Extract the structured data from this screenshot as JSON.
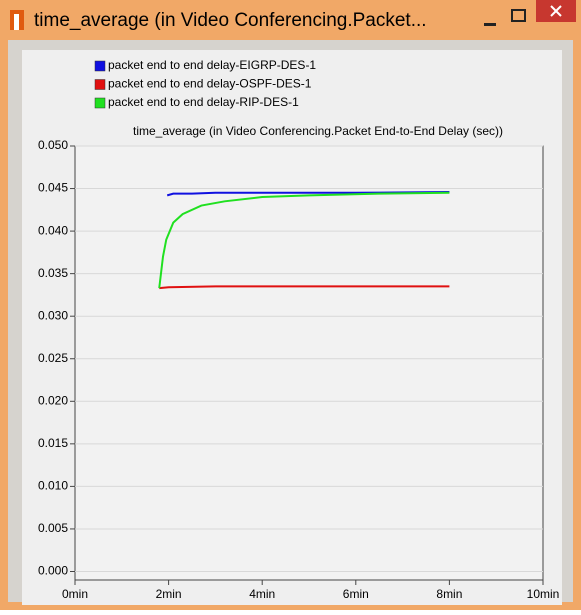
{
  "window": {
    "title": "time_average (in Video Conferencing.Packet..."
  },
  "chart_data": {
    "type": "line",
    "title": "time_average (in Video Conferencing.Packet End-to-End Delay (sec))",
    "xlim": [
      0,
      10
    ],
    "xticks": [
      {
        "value": 0,
        "label": "0min"
      },
      {
        "value": 2,
        "label": "2min"
      },
      {
        "value": 4,
        "label": "4min"
      },
      {
        "value": 6,
        "label": "6min"
      },
      {
        "value": 8,
        "label": "8min"
      },
      {
        "value": 10,
        "label": "10min"
      }
    ],
    "ylim": [
      -0.001,
      0.05
    ],
    "yticks": [
      {
        "value": 0,
        "label": "0.000"
      },
      {
        "value": 0.005,
        "label": "0.005"
      },
      {
        "value": 0.01,
        "label": "0.010"
      },
      {
        "value": 0.015,
        "label": "0.015"
      },
      {
        "value": 0.02,
        "label": "0.020"
      },
      {
        "value": 0.025,
        "label": "0.025"
      },
      {
        "value": 0.03,
        "label": "0.030"
      },
      {
        "value": 0.035,
        "label": "0.035"
      },
      {
        "value": 0.04,
        "label": "0.040"
      },
      {
        "value": 0.045,
        "label": "0.045"
      },
      {
        "value": 0.05,
        "label": "0.050"
      }
    ],
    "grid": true,
    "series": [
      {
        "name": "packet end to end delay-EIGRP-DES-1",
        "color": "#1010e0",
        "x": [
          1.97,
          2.1,
          2.5,
          3,
          4,
          6,
          8
        ],
        "values": [
          0.0442,
          0.0444,
          0.0444,
          0.0445,
          0.0445,
          0.0445,
          0.0446
        ]
      },
      {
        "name": "packet end to end delay-OSPF-DES-1",
        "color": "#e01010",
        "x": [
          1.8,
          2,
          3,
          4,
          6,
          8
        ],
        "values": [
          0.0333,
          0.0334,
          0.0335,
          0.0335,
          0.0335,
          0.0335
        ]
      },
      {
        "name": "packet end to end delay-RIP-DES-1",
        "color": "#20e020",
        "x": [
          1.8,
          1.88,
          1.95,
          2.1,
          2.3,
          2.7,
          3.2,
          4,
          5,
          6.5,
          8
        ],
        "values": [
          0.0333,
          0.037,
          0.039,
          0.041,
          0.042,
          0.043,
          0.0435,
          0.044,
          0.0442,
          0.0444,
          0.0445
        ]
      }
    ]
  }
}
